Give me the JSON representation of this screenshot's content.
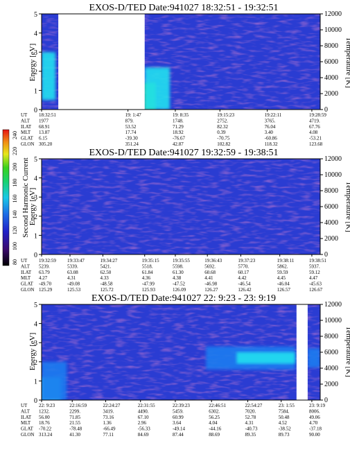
{
  "panels": [
    {
      "title": "EXOS-D/TED   Date:941027  18:32:51 - 19:32:51",
      "ylabel": "Energy [eV]",
      "y2label": "Temperature [K]",
      "orbit_labels": [
        "UT",
        "ALT",
        "ILAT",
        "MLT",
        "GLAT",
        "GLON"
      ],
      "columns": [
        {
          "x": 0.0,
          "vals": [
            "18:32:51",
            "1977",
            "68.91",
            "13.87",
            "6.15",
            "305.20"
          ]
        },
        {
          "x": 0.31,
          "vals": [
            "19: 1:47",
            "879.",
            "53.52",
            "17.74",
            "-39.30",
            "351.24"
          ]
        },
        {
          "x": 0.48,
          "vals": [
            "19: 8:35",
            "1748.",
            "71.29",
            "18.92",
            "-76.67",
            "42.87"
          ]
        },
        {
          "x": 0.64,
          "vals": [
            "19:15:23",
            "2752.",
            "82.32",
            "0.39",
            "-70.75",
            "102.82"
          ]
        },
        {
          "x": 0.81,
          "vals": [
            "19:22:11",
            "3765.",
            "76.04",
            "3.40",
            "-60.86",
            "118.32"
          ]
        },
        {
          "x": 0.97,
          "vals": [
            "19:28:59",
            "4719.",
            "67.76",
            "4.08",
            "-53.21",
            "123.68"
          ]
        }
      ]
    },
    {
      "title": "EXOS-D/TED   Date:941027  19:32:59 - 19:38:51",
      "ylabel": "Energy [eV]",
      "y2label": "Temperature [K]",
      "orbit_labels": [
        "UT",
        "ALT",
        "ILAT",
        "MLT",
        "GLAT",
        "GLON"
      ],
      "columns": [
        {
          "x": 0.0,
          "vals": [
            "19:32:59",
            "5239.",
            "63.79",
            "4.27",
            "-49.70",
            "125.29"
          ]
        },
        {
          "x": 0.102,
          "vals": [
            "19:33:47",
            "5339.",
            "63.08",
            "4.31",
            "-49.08",
            "125.53"
          ]
        },
        {
          "x": 0.22,
          "vals": [
            "19:34:27",
            "5421.",
            "62.50",
            "4.33",
            "-48.58",
            "125.72"
          ]
        },
        {
          "x": 0.37,
          "vals": [
            "19:35:15",
            "5518.",
            "61.84",
            "4.36",
            "-47.99",
            "125.93"
          ]
        },
        {
          "x": 0.48,
          "vals": [
            "19:35:55",
            "5598.",
            "61.30",
            "4.38",
            "-47.52",
            "126.09"
          ]
        },
        {
          "x": 0.595,
          "vals": [
            "19:36:43",
            "5692.",
            "60.68",
            "4.41",
            "-46.98",
            "126.27"
          ]
        },
        {
          "x": 0.715,
          "vals": [
            "19:37:23",
            "5770.",
            "60.17",
            "4.42",
            "-46.54",
            "126.42"
          ]
        },
        {
          "x": 0.855,
          "vals": [
            "19:38:11",
            "5862.",
            "59.59",
            "4.45",
            "-46.04",
            "126.57"
          ]
        },
        {
          "x": 0.97,
          "vals": [
            "19:38:51",
            "5937.",
            "59.12",
            "4.47",
            "-45.63",
            "126.67"
          ]
        }
      ]
    },
    {
      "title": "EXOS-D/TED   Date:941027  22: 9:23 - 23: 9:19",
      "ylabel": "Energy [eV]",
      "y2label": "Temperature [K]",
      "orbit_labels": [
        "UT",
        "ALT",
        "ILAT",
        "MLT",
        "GLAT",
        "GLON"
      ],
      "columns": [
        {
          "x": 0.0,
          "vals": [
            "22: 9:23",
            "1232.",
            "56.00",
            "18.76",
            "-70.22",
            "313.24"
          ]
        },
        {
          "x": 0.11,
          "vals": [
            "22:16:59",
            "2299.",
            "71.85",
            "21.55",
            "-78.48",
            "41.30"
          ]
        },
        {
          "x": 0.23,
          "vals": [
            "22:24:27",
            "3419.",
            "73.16",
            "1.36",
            "-66.49",
            "77.11"
          ]
        },
        {
          "x": 0.355,
          "vals": [
            "22:31:55",
            "4490.",
            "67.10",
            "2.96",
            "-56.33",
            "84.69"
          ]
        },
        {
          "x": 0.48,
          "vals": [
            "22:39:23",
            "5459.",
            "60.99",
            "3.64",
            "-49.14",
            "87.44"
          ]
        },
        {
          "x": 0.61,
          "vals": [
            "22:46:51",
            "6302.",
            "56.25",
            "4.04",
            "-44.16",
            "88.69"
          ]
        },
        {
          "x": 0.74,
          "vals": [
            "22:54:27",
            "7020.",
            "52.78",
            "4.31",
            "-40.73",
            "89.35"
          ]
        },
        {
          "x": 0.86,
          "vals": [
            "23: 1:55",
            "7584.",
            "50.48",
            "4.52",
            "-38.52",
            "89.73"
          ]
        },
        {
          "x": 0.97,
          "vals": [
            "23: 9:19",
            "8006.",
            "49.06",
            "4.70",
            "-37.18",
            "90.00"
          ]
        }
      ]
    }
  ],
  "colorbar": {
    "label": "Second Harmonic Current",
    "ticks": [
      "240",
      "220",
      "200",
      "180",
      "160",
      "140",
      "120",
      "100",
      "80"
    ]
  },
  "chart_data": [
    {
      "type": "heatmap",
      "title": "EXOS-D/TED   Date:941027  18:32:51 - 19:32:51",
      "xlabel": "",
      "ylabel": "Energy [eV]",
      "y2label": "Temperature [K]",
      "ylim": [
        0,
        5
      ],
      "y2lim": [
        0,
        12000
      ],
      "yticks": [
        0,
        1,
        2,
        3,
        4,
        5
      ],
      "y2ticks": [
        0,
        2000,
        4000,
        6000,
        8000,
        10000,
        12000
      ],
      "data_gaps": [
        [
          0.06,
          0.37
        ]
      ],
      "background": "#2a3cd2",
      "features": [
        {
          "t0": 0.0,
          "t1": 0.05,
          "e0": 0.5,
          "e1": 3.0,
          "level": "cyan"
        },
        {
          "t0": 0.37,
          "t1": 0.41,
          "e0": 0.0,
          "e1": 1.4,
          "level": "green"
        },
        {
          "t0": 0.37,
          "t1": 0.46,
          "e0": 0.0,
          "e1": 2.2,
          "level": "cyan"
        }
      ]
    },
    {
      "type": "heatmap",
      "title": "EXOS-D/TED   Date:941027  19:32:59 - 19:38:51",
      "xlabel": "",
      "ylabel": "Energy [eV]",
      "y2label": "Temperature [K]",
      "ylim": [
        0,
        5
      ],
      "y2lim": [
        0,
        12000
      ],
      "yticks": [
        0,
        1,
        2,
        3,
        4,
        5
      ],
      "y2ticks": [
        0,
        2000,
        4000,
        6000,
        8000,
        10000,
        12000
      ],
      "data_gaps": [],
      "background": "#2a3cd2",
      "features": []
    },
    {
      "type": "heatmap",
      "title": "EXOS-D/TED   Date:941027  22: 9:23 - 23: 9:19",
      "xlabel": "",
      "ylabel": "Energy [eV]",
      "y2label": "Temperature [K]",
      "ylim": [
        0,
        5
      ],
      "y2lim": [
        0,
        12000
      ],
      "yticks": [
        0,
        1,
        2,
        3,
        4,
        5
      ],
      "y2ticks": [
        0,
        2000,
        4000,
        6000,
        8000,
        10000,
        12000
      ],
      "data_gaps": [
        [
          0.915,
          0.955
        ]
      ],
      "background": "#2a3cd2",
      "features": [
        {
          "t0": 0.0,
          "t1": 0.07,
          "e0": 0.0,
          "e1": 1.2,
          "level": "cyan"
        },
        {
          "t0": 0.0,
          "t1": 0.09,
          "e0": 0.0,
          "e1": 2.0,
          "level": "blue"
        },
        {
          "t0": 0.59,
          "t1": 0.91,
          "e0": 1.6,
          "e1": 2.8,
          "level": "blue"
        },
        {
          "t0": 0.7,
          "t1": 0.91,
          "e0": 1.9,
          "e1": 2.5,
          "level": "cyan"
        },
        {
          "t0": 0.955,
          "t1": 1.0,
          "e0": 1.7,
          "e1": 2.7,
          "level": "blue"
        }
      ]
    }
  ]
}
